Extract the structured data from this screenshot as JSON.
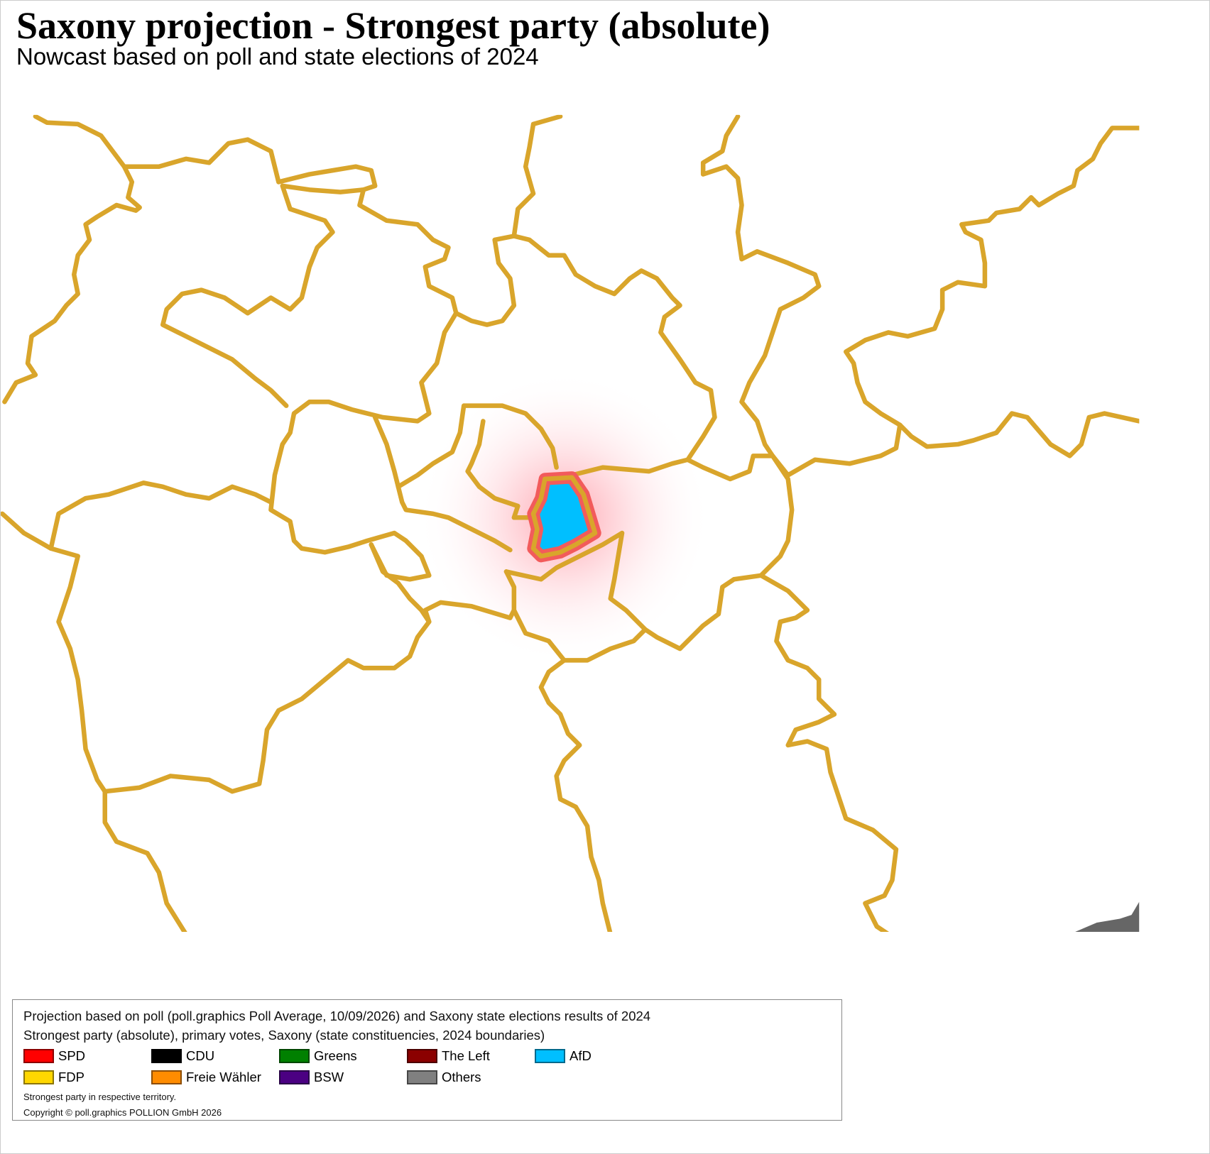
{
  "header": {
    "title": "Saxony projection - Strongest party (absolute)",
    "subtitle": "Nowcast based on poll and state elections of 2024"
  },
  "legend": {
    "lines": [
      "Projection based on poll (poll.graphics Poll Average, 10/09/2026) and Saxony state elections results of 2024",
      "Strongest party (absolute), primary votes, Saxony (state constituencies, 2024 boundaries)"
    ],
    "entries": [
      {
        "label": "SPD",
        "color": "#ff0000"
      },
      {
        "label": "CDU",
        "color": "#000000"
      },
      {
        "label": "Greens",
        "color": "#008000"
      },
      {
        "label": "The Left",
        "color": "#8b0000"
      },
      {
        "label": "AfD",
        "color": "#00bfff"
      },
      {
        "label": "FDP",
        "color": "#ffd700"
      },
      {
        "label": "Freie Wähler",
        "color": "#ff8c00"
      },
      {
        "label": "BSW",
        "color": "#4b0082"
      },
      {
        "label": "Others",
        "color": "#808080"
      }
    ],
    "notes": [
      "Strongest party in respective territory.",
      "Copyright © poll.graphics POLLION GmbH 2026"
    ]
  }
}
